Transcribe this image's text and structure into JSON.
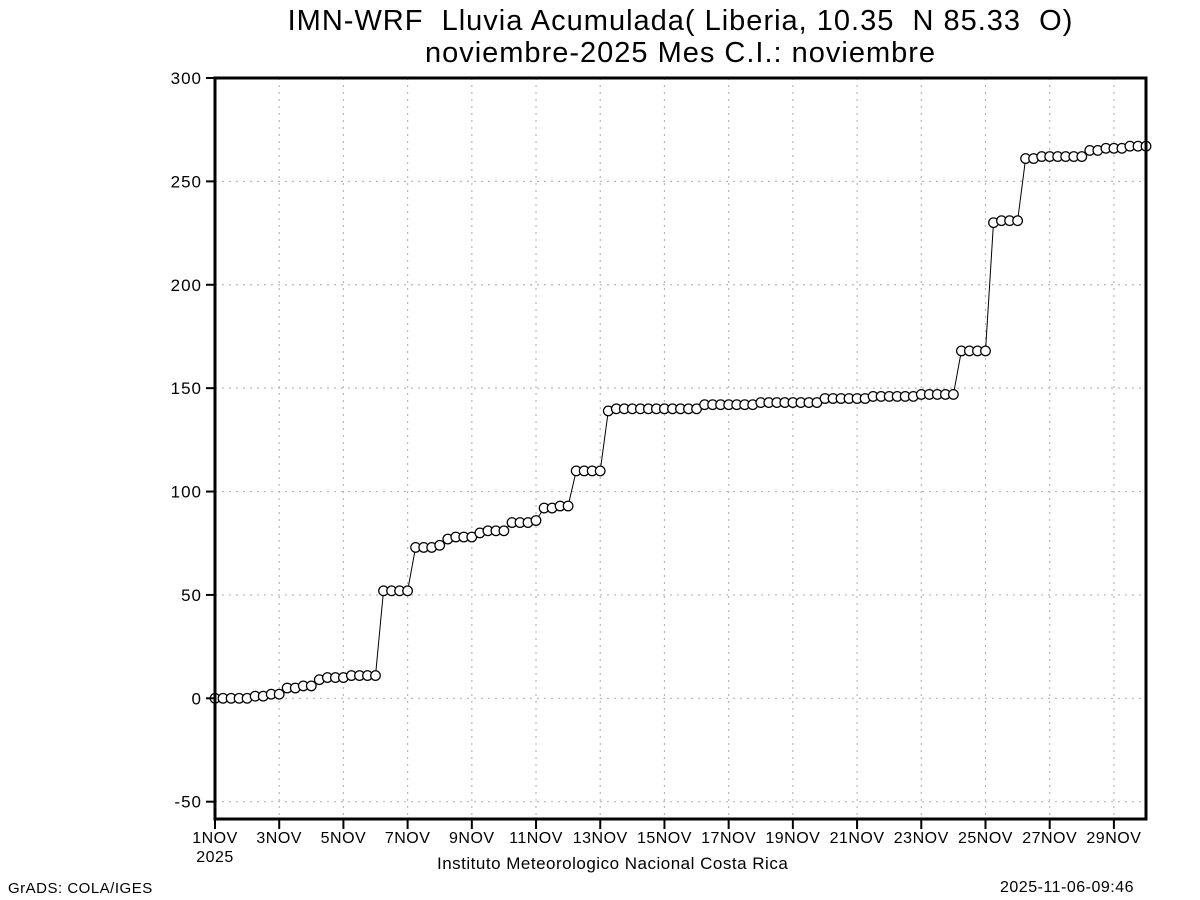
{
  "title": {
    "line1": "IMN-WRF  Lluvia Acumulada( Liberia, 10.35  N 85.33  O)",
    "line2": "noviembre-2025 Mes C.I.: noviembre"
  },
  "footer": {
    "left": "GrADS: COLA/IGES",
    "right": "2025-11-06-09:46"
  },
  "chart_data": {
    "type": "line",
    "title": "IMN-WRF  Lluvia Acumulada( Liberia, 10.35  N 85.33  O)",
    "subtitle": "noviembre-2025 Mes C.I.: noviembre",
    "xlabel": "Instituto Meteorologico Nacional Costa Rica",
    "ylabel": "",
    "grid": true,
    "marker": "open-circle",
    "ylim": [
      -58,
      300
    ],
    "y_ticks": [
      -50,
      0,
      50,
      100,
      150,
      200,
      250,
      300
    ],
    "x_range_days": [
      0,
      29
    ],
    "x_ticks": [
      {
        "day": 0,
        "label": "1NOV",
        "sublabel": "2025"
      },
      {
        "day": 2,
        "label": "3NOV"
      },
      {
        "day": 4,
        "label": "5NOV"
      },
      {
        "day": 6,
        "label": "7NOV"
      },
      {
        "day": 8,
        "label": "9NOV"
      },
      {
        "day": 10,
        "label": "11NOV"
      },
      {
        "day": 12,
        "label": "13NOV"
      },
      {
        "day": 14,
        "label": "15NOV"
      },
      {
        "day": 16,
        "label": "17NOV"
      },
      {
        "day": 18,
        "label": "19NOV"
      },
      {
        "day": 20,
        "label": "21NOV"
      },
      {
        "day": 22,
        "label": "23NOV"
      },
      {
        "day": 24,
        "label": "25NOV"
      },
      {
        "day": 26,
        "label": "27NOV"
      },
      {
        "day": 28,
        "label": "29NOV"
      }
    ],
    "series": [
      {
        "name": "lluvia_acumulada_mm",
        "interval_hours": 6,
        "values": [
          0,
          0,
          0,
          0,
          0,
          1,
          1,
          2,
          2,
          5,
          5,
          6,
          6,
          9,
          10,
          10,
          10,
          11,
          11,
          11,
          11,
          52,
          52,
          52,
          52,
          73,
          73,
          73,
          74,
          77,
          78,
          78,
          78,
          80,
          81,
          81,
          81,
          85,
          85,
          85,
          86,
          92,
          92,
          93,
          93,
          110,
          110,
          110,
          110,
          139,
          140,
          140,
          140,
          140,
          140,
          140,
          140,
          140,
          140,
          140,
          140,
          142,
          142,
          142,
          142,
          142,
          142,
          142,
          143,
          143,
          143,
          143,
          143,
          143,
          143,
          143,
          145,
          145,
          145,
          145,
          145,
          145,
          146,
          146,
          146,
          146,
          146,
          146,
          147,
          147,
          147,
          147,
          147,
          168,
          168,
          168,
          168,
          230,
          231,
          231,
          231,
          261,
          261,
          262,
          262,
          262,
          262,
          262,
          262,
          265,
          265,
          266,
          266,
          266,
          267,
          267,
          267
        ]
      }
    ],
    "colors": {
      "line": "#000000",
      "marker_fill": "#ffffff",
      "marker_stroke": "#000000",
      "grid": "#b8b8b8",
      "axis": "#000000",
      "background": "#ffffff"
    }
  }
}
